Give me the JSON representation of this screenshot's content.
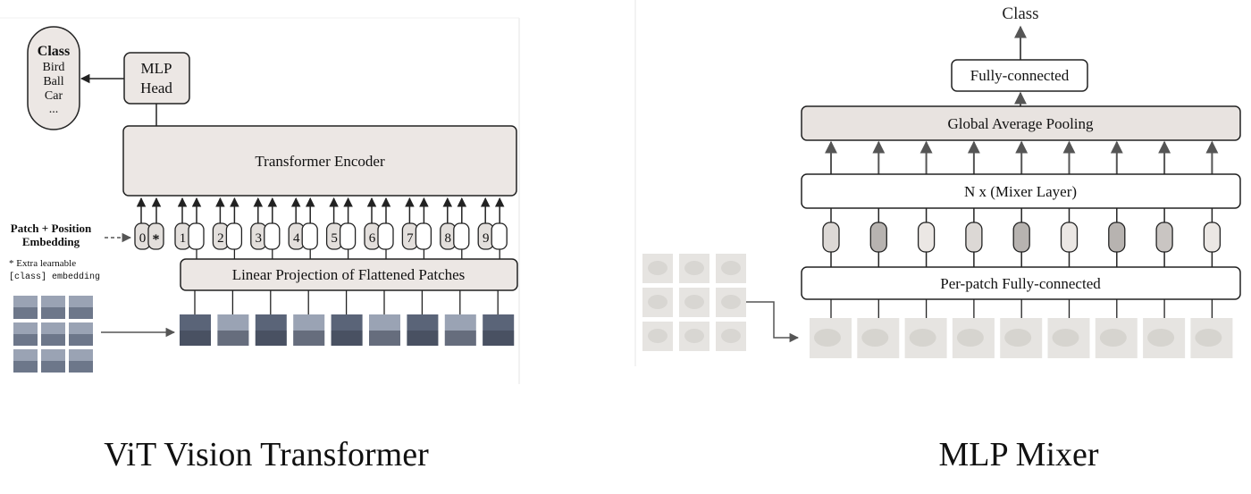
{
  "vit": {
    "class_box": {
      "title": "Class",
      "items": [
        "Bird",
        "Ball",
        "Car",
        "..."
      ]
    },
    "mlp_head": [
      "MLP",
      "Head"
    ],
    "encoder_label": "Transformer Encoder",
    "embedding_label": [
      "Patch + Position",
      "Embedding"
    ],
    "extra_note": [
      "* Extra learnable",
      "[class] embedding"
    ],
    "class_token": {
      "num": "0",
      "star": "*"
    },
    "tokens": [
      "1",
      "2",
      "3",
      "4",
      "5",
      "6",
      "7",
      "8",
      "9"
    ],
    "projection_label": "Linear Projection of Flattened Patches",
    "caption": "ViT Vision Transformer",
    "colors": {
      "box_fill": "#ece7e4",
      "token_fill": "#e3dfdc",
      "patch_dark": "#5a6478",
      "patch_light": "#9aa3b4"
    }
  },
  "mixer": {
    "class_label": "Class",
    "fc_label": "Fully-connected",
    "gap_label": "Global Average Pooling",
    "mixer_layer_label": "N x (Mixer Layer)",
    "per_patch_label": "Per-patch Fully-connected",
    "token_shades": [
      "#dcd8d5",
      "#b7b3b0",
      "#ebe7e4",
      "#dcd8d5",
      "#b7b3b0",
      "#ebe7e4",
      "#b7b3b0",
      "#c9c5c2",
      "#ebe7e4"
    ],
    "caption": "MLP Mixer",
    "colors": {
      "box_fill": "#e8e3e0",
      "patch_fill": "#e6e4e1"
    }
  }
}
